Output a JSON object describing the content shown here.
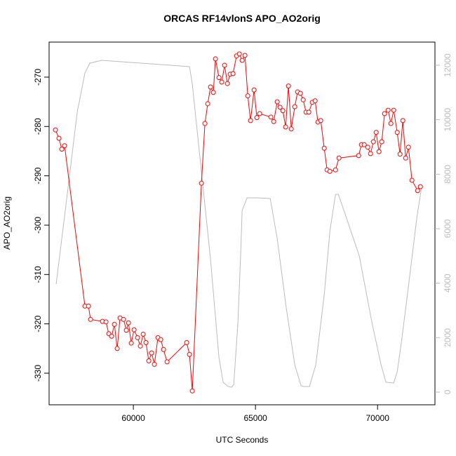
{
  "chart_data": {
    "type": "line",
    "title": "ORCAS RF14vlonS APO_AO2orig",
    "x_label": "UTC Seconds",
    "y_label": "APO_AO2orig",
    "xlim": [
      56550,
      72350
    ],
    "xticks": [
      60000,
      65000,
      70000
    ],
    "ylim": [
      -336.4,
      -262.9
    ],
    "yticks": [
      -330,
      -320,
      -310,
      -300,
      -290,
      -280,
      -270
    ],
    "y2lim": [
      -465,
      12850
    ],
    "y2ticks": [
      0,
      2000,
      4000,
      6000,
      8000,
      10000,
      12000
    ],
    "y2_color": "#bbbbbb",
    "series": [
      {
        "color": "#bbbbbb",
        "axis": "y2",
        "markers": false,
        "x": [
          56839,
          57213,
          57701,
          58017,
          58218,
          58707,
          62299,
          62414,
          62788,
          63161,
          63506,
          63678,
          63880,
          64024,
          64110,
          64282,
          64397,
          64455,
          64657,
          65030,
          65604,
          65891,
          66265,
          66610,
          66868,
          66983,
          67213,
          67472,
          67817,
          68047,
          68277,
          68392,
          68622,
          69253,
          69770,
          70143,
          70345,
          70661,
          70805,
          71006,
          71294,
          71610,
          71811
        ],
        "values": [
          3966,
          6670,
          10276,
          11718,
          12078,
          12181,
          11950,
          11306,
          8087,
          4867,
          1262,
          361,
          206,
          180,
          283,
          2550,
          5125,
          6670,
          7134,
          7134,
          7108,
          5640,
          3065,
          1004,
          232,
          206,
          206,
          1004,
          3580,
          5897,
          7262,
          7262,
          6670,
          4996,
          2550,
          1004,
          361,
          335,
          747,
          2034,
          4095,
          6412,
          7571
        ]
      },
      {
        "color": "#ff0000",
        "axis": "y",
        "markers": true,
        "x": [
          56810,
          56954,
          57069,
          57184,
          58017,
          58161,
          58247,
          58735,
          58879,
          58994,
          59109,
          59224,
          59339,
          59454,
          59598,
          59713,
          59799,
          59914,
          60029,
          60172,
          60287,
          60402,
          60517,
          60632,
          60747,
          60862,
          61006,
          61121,
          61236,
          61380,
          62184,
          62299,
          62414,
          62788,
          62931,
          63046,
          63161,
          63276,
          63362,
          63506,
          63621,
          63736,
          63851,
          63966,
          64081,
          64225,
          64340,
          64455,
          64570,
          64685,
          64799,
          64943,
          65058,
          65173,
          65633,
          65748,
          65891,
          66006,
          66121,
          66236,
          66351,
          66466,
          66610,
          66725,
          66840,
          66955,
          67070,
          67185,
          67328,
          67443,
          67558,
          67673,
          67817,
          67932,
          68047,
          68277,
          68420,
          69225,
          69339,
          69454,
          69598,
          69713,
          69828,
          69943,
          70058,
          70172,
          70287,
          70431,
          70546,
          70661,
          70805,
          70920,
          71035,
          71150,
          71265,
          71409,
          71639,
          71754
        ],
        "values": [
          -280.7,
          -282.4,
          -284.6,
          -283.9,
          -316.4,
          -316.4,
          -319.1,
          -319.5,
          -319.6,
          -322.0,
          -322.5,
          -320.1,
          -325.0,
          -318.8,
          -319.1,
          -321.3,
          -319.8,
          -323.9,
          -321.2,
          -322.8,
          -324.5,
          -322.1,
          -323.8,
          -327.5,
          -325.9,
          -328.2,
          -322.8,
          -323.2,
          -325.2,
          -327.7,
          -323.8,
          -326.2,
          -333.6,
          -291.5,
          -279.4,
          -275.4,
          -272.0,
          -273.1,
          -266.3,
          -270.1,
          -271.0,
          -267.6,
          -271.3,
          -269.4,
          -269.3,
          -265.7,
          -265.3,
          -266.6,
          -265.6,
          -273.8,
          -278.8,
          -272.6,
          -278.2,
          -277.4,
          -278.1,
          -279.0,
          -275.0,
          -276.1,
          -276.8,
          -280.1,
          -271.8,
          -280.5,
          -276.0,
          -273.0,
          -273.3,
          -274.6,
          -277.1,
          -277.1,
          -275.1,
          -274.8,
          -279.1,
          -278.8,
          -284.4,
          -288.8,
          -289.1,
          -288.8,
          -286.4,
          -285.9,
          -283.7,
          -283.7,
          -284.2,
          -285.5,
          -283.1,
          -281.2,
          -285.1,
          -283.1,
          -277.4,
          -276.7,
          -279.4,
          -276.7,
          -281.2,
          -285.6,
          -278.8,
          -286.4,
          -284.2,
          -290.9,
          -293.0,
          -292.2
        ]
      }
    ]
  }
}
